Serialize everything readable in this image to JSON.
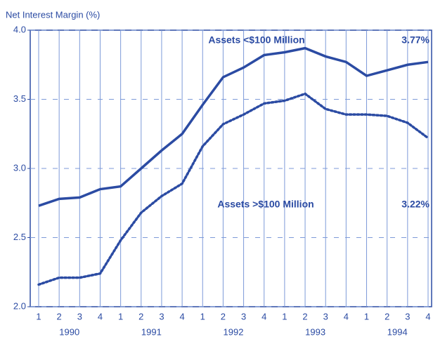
{
  "chart_data": {
    "type": "line",
    "y_axis_label": "Net Interest Margin (%)",
    "categories": [
      "1",
      "2",
      "3",
      "4",
      "1",
      "2",
      "3",
      "4",
      "1",
      "2",
      "3",
      "4",
      "1",
      "2",
      "3",
      "4",
      "1",
      "2",
      "3",
      "4"
    ],
    "years": [
      "1990",
      "1991",
      "1992",
      "1993",
      "1994"
    ],
    "series": [
      {
        "name": "Assets <$100 Million",
        "color": "#2b4ba3",
        "style": "solid",
        "end_label": "3.77%",
        "values": [
          2.73,
          2.78,
          2.79,
          2.85,
          2.87,
          3.0,
          3.13,
          3.25,
          3.46,
          3.66,
          3.73,
          3.82,
          3.84,
          3.87,
          3.81,
          3.77,
          3.67,
          3.71,
          3.75,
          3.77
        ]
      },
      {
        "name": "Assets >$100 Million",
        "color": "#2b4ba3",
        "style": "dotted",
        "end_label": "3.22%",
        "values": [
          2.16,
          2.21,
          2.21,
          2.24,
          2.48,
          2.68,
          2.8,
          2.89,
          3.16,
          3.32,
          3.39,
          3.47,
          3.49,
          3.54,
          3.43,
          3.39,
          3.39,
          3.38,
          3.33,
          3.22
        ]
      }
    ],
    "ylim": [
      2,
      4
    ],
    "yticks": [
      {
        "value": 2,
        "label": "2.0"
      },
      2.5,
      {
        "value": 3,
        "label": "3.0"
      },
      3.5,
      {
        "value": 4,
        "label": "4.0"
      }
    ],
    "grid": true
  }
}
